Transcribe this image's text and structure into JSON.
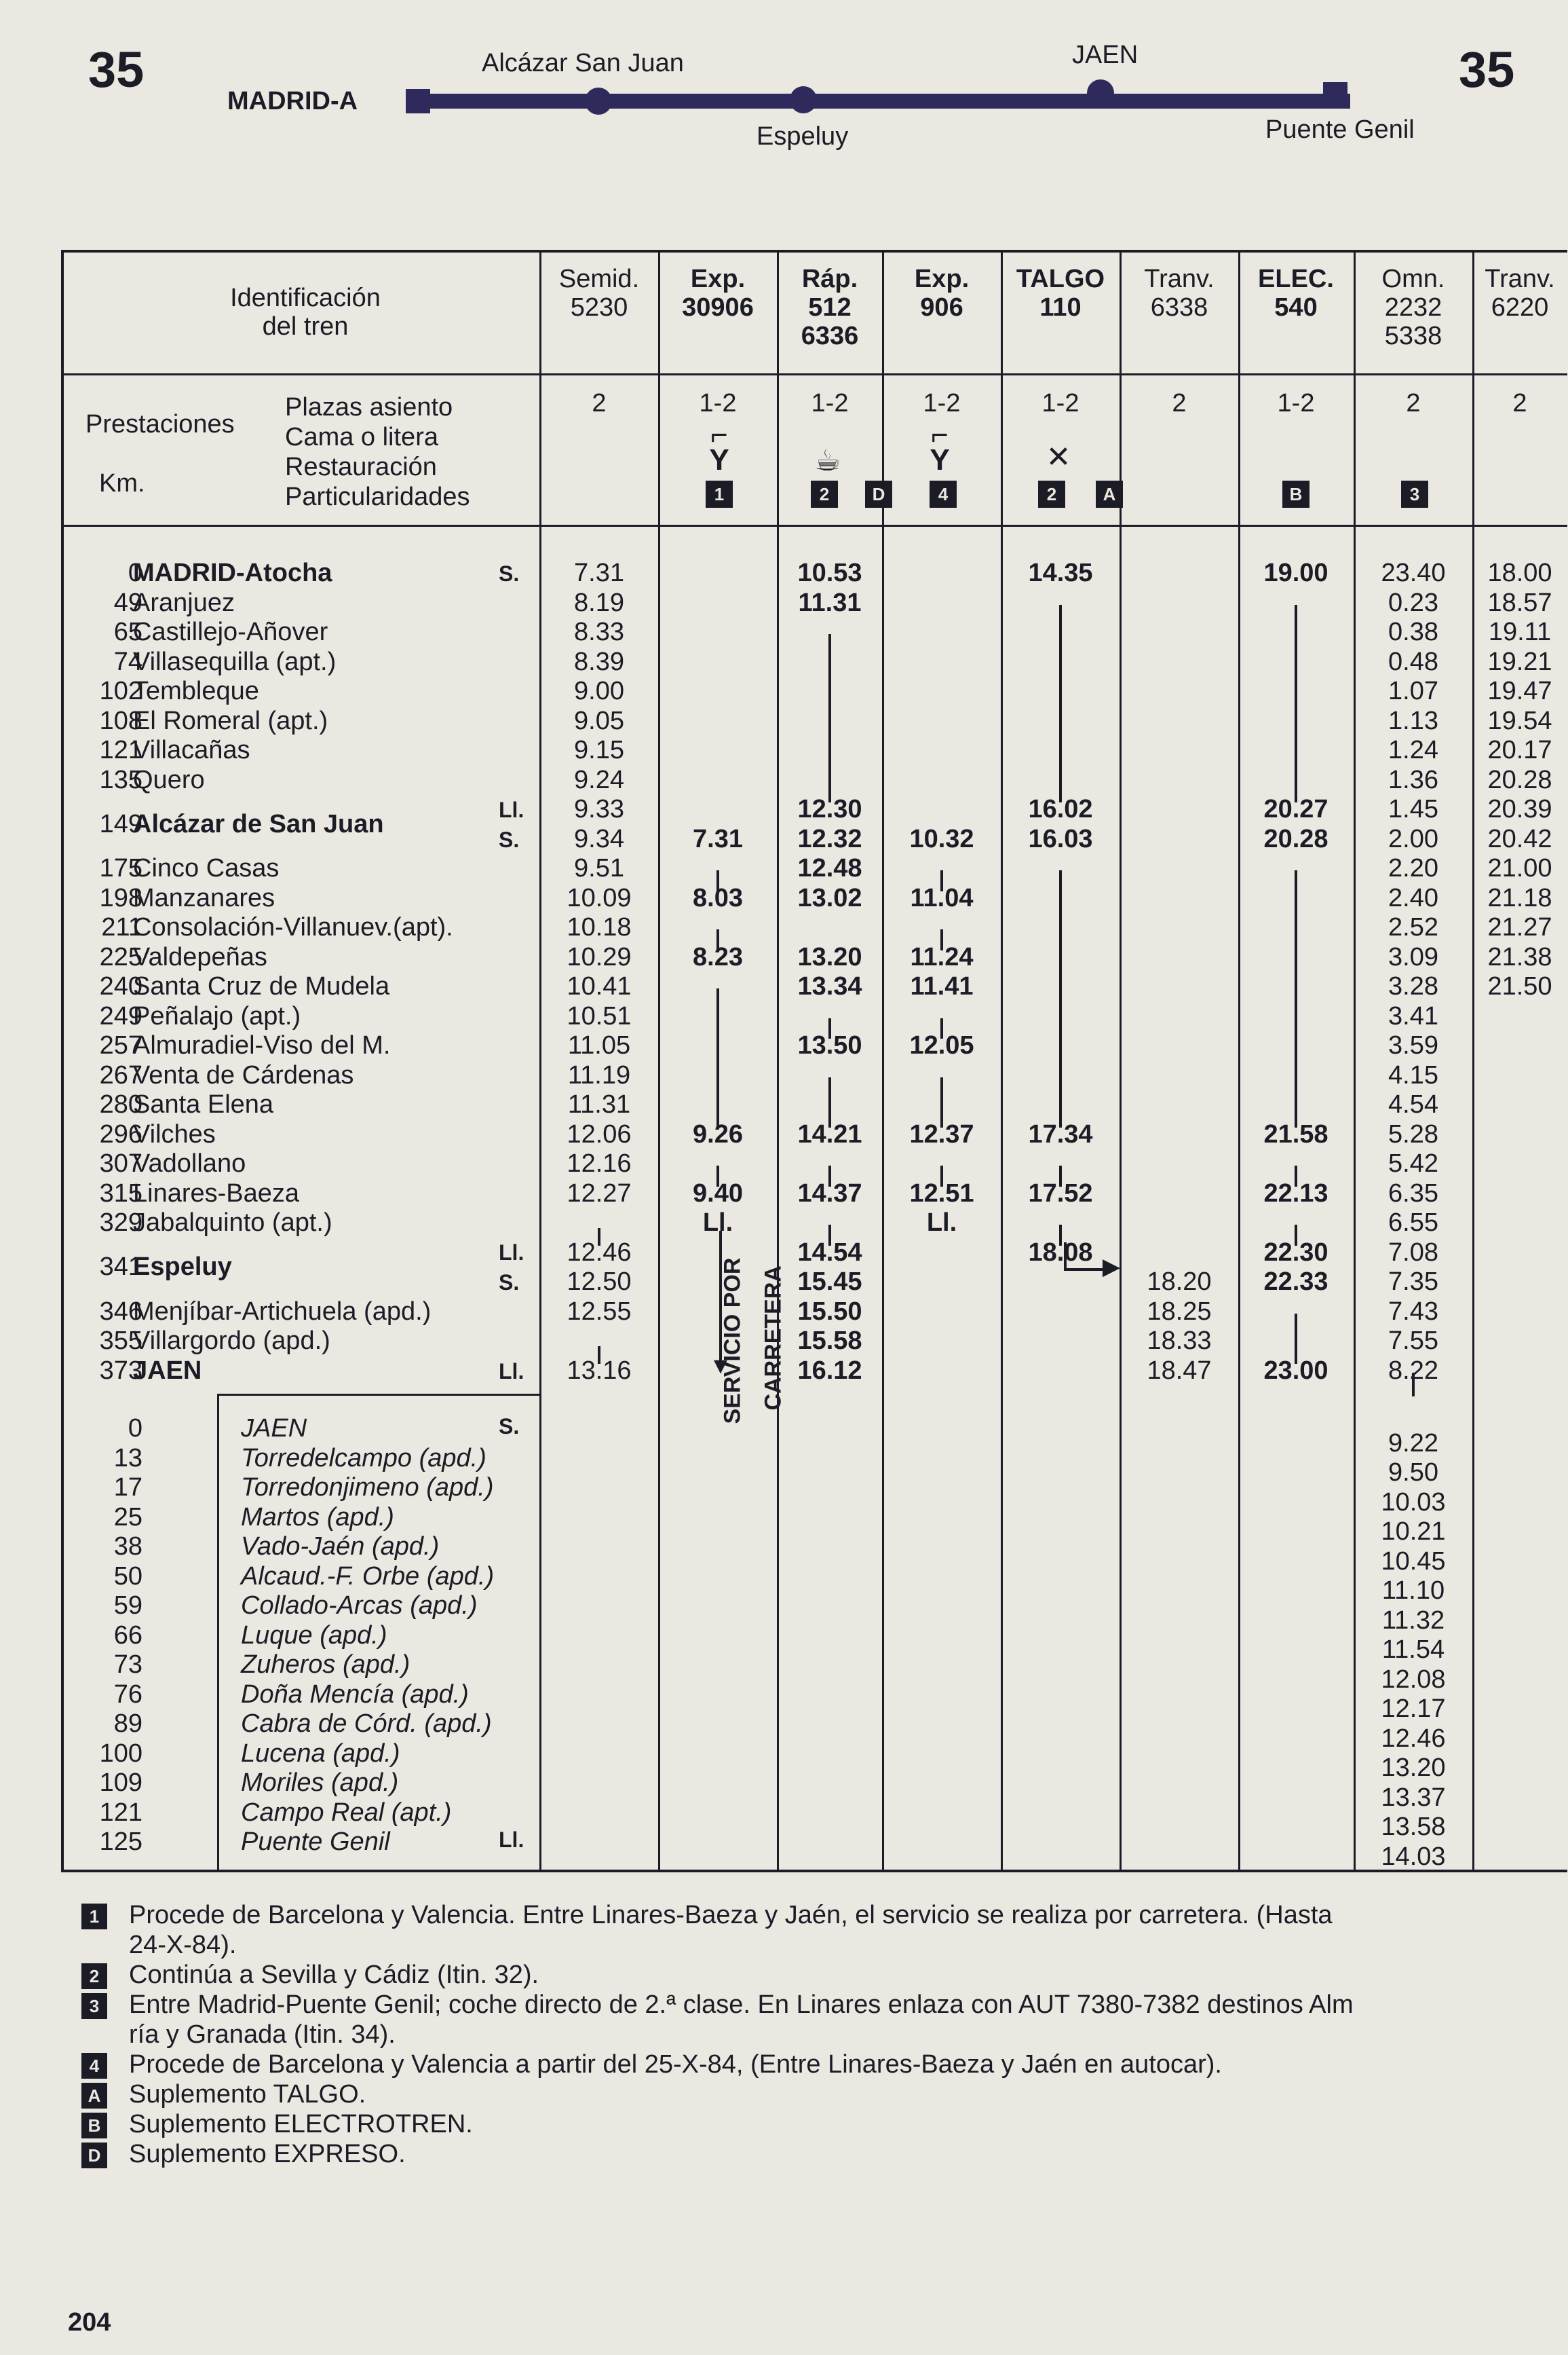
{
  "page": {
    "table_number": "35",
    "page_number": "204"
  },
  "route": {
    "start": "MADRID-A",
    "stop_1": "Alcázar San Juan",
    "stop_2": "Espeluy",
    "stop_3": "JAEN",
    "end": "Puente Genil"
  },
  "header": {
    "identification": "Identificación\ndel tren",
    "prestaciones": "Prestaciones",
    "km": "Km.",
    "plazas": "Plazas asiento",
    "cama": "Cama o litera",
    "restauracion": "Restauración",
    "particularidades": "Particularidades"
  },
  "trains": [
    {
      "id": "Semid.\n5230",
      "cls": "2"
    },
    {
      "id": "Exp.\n30906",
      "cls": "1-2"
    },
    {
      "id": "Ráp.\n512\n6336",
      "cls": "1-2"
    },
    {
      "id": "Exp.\n906",
      "cls": "1-2"
    },
    {
      "id": "TALGO\n110",
      "cls": "1-2"
    },
    {
      "id": "Tranv.\n6338",
      "cls": "2"
    },
    {
      "id": "ELEC.\n540",
      "cls": "1-2"
    },
    {
      "id": "Omn.\n2232\n5338",
      "cls": "2"
    },
    {
      "id": "Tranv.\n6220",
      "cls": "2"
    }
  ],
  "badges": [
    "1",
    "2",
    "D",
    "4",
    "2",
    "A",
    "B",
    "3"
  ],
  "stations": [
    {
      "km": "0",
      "name": "MADRID-Atocha",
      "suffix": "S."
    },
    {
      "km": "49",
      "name": "Aranjuez",
      "suffix": ""
    },
    {
      "km": "65",
      "name": "Castillejo-Añover",
      "suffix": ""
    },
    {
      "km": "74",
      "name": "Villasequilla (apt.)",
      "suffix": ""
    },
    {
      "km": "102",
      "name": "Tembleque",
      "suffix": ""
    },
    {
      "km": "108",
      "name": "El Romeral (apt.)",
      "suffix": ""
    },
    {
      "km": "121",
      "name": "Villacañas",
      "suffix": ""
    },
    {
      "km": "135",
      "name": "Quero",
      "suffix": ""
    },
    {
      "km": "149",
      "name": "Alcázar de San Juan",
      "suffix": "Ll.\nS."
    },
    {
      "km": "175",
      "name": "Cinco Casas",
      "suffix": ""
    },
    {
      "km": "198",
      "name": "Manzanares",
      "suffix": ""
    },
    {
      "km": "211",
      "name": "Consolación-Villanuev.(apt).",
      "suffix": ""
    },
    {
      "km": "225",
      "name": "Valdepeñas",
      "suffix": ""
    },
    {
      "km": "240",
      "name": "Santa Cruz de Mudela",
      "suffix": ""
    },
    {
      "km": "249",
      "name": "Peñalajo (apt.)",
      "suffix": ""
    },
    {
      "km": "257",
      "name": "Almuradiel-Viso del M.",
      "suffix": ""
    },
    {
      "km": "267",
      "name": "Venta de Cárdenas",
      "suffix": ""
    },
    {
      "km": "280",
      "name": "Santa Elena",
      "suffix": ""
    },
    {
      "km": "296",
      "name": "Vilches",
      "suffix": ""
    },
    {
      "km": "307",
      "name": "Vadollano",
      "suffix": ""
    },
    {
      "km": "315",
      "name": "Linares-Baeza",
      "suffix": ""
    },
    {
      "km": "329",
      "name": "Jabalquinto (apt.)",
      "suffix": ""
    },
    {
      "km": "341",
      "name": "Espeluy",
      "suffix": "Ll.\nS."
    },
    {
      "km": "346",
      "name": "Menjíbar-Artichuela (apd.)",
      "suffix": ""
    },
    {
      "km": "355",
      "name": "Villargordo (apd.)",
      "suffix": ""
    },
    {
      "km": "373",
      "name": "JAEN",
      "suffix": "Ll."
    }
  ],
  "branch_stations": [
    {
      "km": "0",
      "name": "JAEN",
      "suffix": "S."
    },
    {
      "km": "13",
      "name": "Torredelcampo (apd.)",
      "suffix": ""
    },
    {
      "km": "17",
      "name": "Torredonjimeno (apd.)",
      "suffix": ""
    },
    {
      "km": "25",
      "name": "Martos (apd.)",
      "suffix": ""
    },
    {
      "km": "38",
      "name": "Vado-Jaén (apd.)",
      "suffix": ""
    },
    {
      "km": "50",
      "name": "Alcaud.-F. Orbe (apd.)",
      "suffix": ""
    },
    {
      "km": "59",
      "name": "Collado-Arcas (apd.)",
      "suffix": ""
    },
    {
      "km": "66",
      "name": "Luque (apd.)",
      "suffix": ""
    },
    {
      "km": "73",
      "name": "Zuheros (apd.)",
      "suffix": ""
    },
    {
      "km": "76",
      "name": "Doña Mencía (apd.)",
      "suffix": ""
    },
    {
      "km": "89",
      "name": "Cabra de Córd. (apd.)",
      "suffix": ""
    },
    {
      "km": "100",
      "name": "Lucena (apd.)",
      "suffix": ""
    },
    {
      "km": "109",
      "name": "Moriles (apd.)",
      "suffix": ""
    },
    {
      "km": "121",
      "name": "Campo Real (apt.)",
      "suffix": ""
    },
    {
      "km": "125",
      "name": "Puente Genil",
      "suffix": "Ll."
    }
  ],
  "times": {
    "c0": [
      "7.31",
      "8.19",
      "8.33",
      "8.39",
      "9.00",
      "9.05",
      "9.15",
      "9.24",
      "9.33",
      "9.34",
      "9.51",
      "10.09",
      "10.18",
      "10.29",
      "10.41",
      "10.51",
      "11.05",
      "11.19",
      "11.31",
      "12.06",
      "12.16",
      "12.27",
      "",
      "12.46",
      "12.50",
      "12.55",
      "",
      "13.16"
    ],
    "c1": [
      "7.31",
      "8.03",
      "8.23",
      "9.26",
      "9.40",
      "Ll."
    ],
    "c2": [
      "10.53",
      "11.31",
      "12.30",
      "12.32",
      "12.48",
      "13.02",
      "13.20",
      "13.34",
      "13.50",
      "14.21",
      "14.37",
      "14.54",
      "15.45",
      "15.50",
      "15.58",
      "16.12"
    ],
    "c3": [
      "10.32",
      "11.04",
      "11.24",
      "11.41",
      "12.05",
      "12.37",
      "12.51",
      "Ll."
    ],
    "c4": [
      "14.35",
      "16.02",
      "16.03",
      "17.34",
      "17.52",
      "18.08"
    ],
    "c5": [
      "18.20",
      "18.25",
      "18.33",
      "18.47"
    ],
    "c6": [
      "19.00",
      "20.27",
      "20.28",
      "21.58",
      "22.13",
      "22.30",
      "22.33",
      "23.00"
    ],
    "c7": [
      "23.40",
      "0.23",
      "0.38",
      "0.48",
      "1.07",
      "1.13",
      "1.24",
      "1.36",
      "1.45",
      "2.00",
      "2.20",
      "2.40",
      "2.52",
      "3.09",
      "3.28",
      "3.41",
      "3.59",
      "4.15",
      "4.54",
      "5.28",
      "5.42",
      "6.35",
      "6.55",
      "7.08",
      "7.35",
      "7.43",
      "7.55",
      "8.22",
      "9.22",
      "9.50",
      "10.03",
      "10.21",
      "10.45",
      "11.10",
      "11.32",
      "11.54",
      "12.08",
      "12.17",
      "12.46",
      "13.20",
      "13.37",
      "13.58",
      "14.03"
    ],
    "c8": [
      "18.00",
      "18.57",
      "19.11",
      "19.21",
      "19.47",
      "19.54",
      "20.17",
      "20.28",
      "20.39",
      "20.42",
      "21.00",
      "21.18",
      "21.27",
      "21.38",
      "21.50"
    ]
  },
  "service_note": {
    "line1": "SERVICIO POR",
    "line2": "CARRETERA"
  },
  "footnotes": [
    {
      "mark": "1",
      "text": "Procede de Barcelona y Valencia. Entre Linares-Baeza y Jaén, el servicio se realiza por carretera. (Hasta"
    },
    {
      "mark": "",
      "text": "24-X-84)."
    },
    {
      "mark": "2",
      "text": "Continúa a Sevilla y Cádiz (Itin. 32)."
    },
    {
      "mark": "3",
      "text": "Entre Madrid-Puente Genil; coche directo de 2.ª clase. En Linares enlaza con AUT 7380-7382 destinos Alm"
    },
    {
      "mark": "",
      "text": "ría y Granada  (Itin. 34)."
    },
    {
      "mark": "4",
      "text": "Procede de Barcelona y Valencia a partir del 25-X-84, (Entre Linares-Baeza y Jaén en autocar)."
    },
    {
      "mark": "A",
      "text": "Suplemento TALGO."
    },
    {
      "mark": "B",
      "text": "Suplemento ELECTROTREN."
    },
    {
      "mark": "D",
      "text": "Suplemento EXPRESO."
    }
  ]
}
